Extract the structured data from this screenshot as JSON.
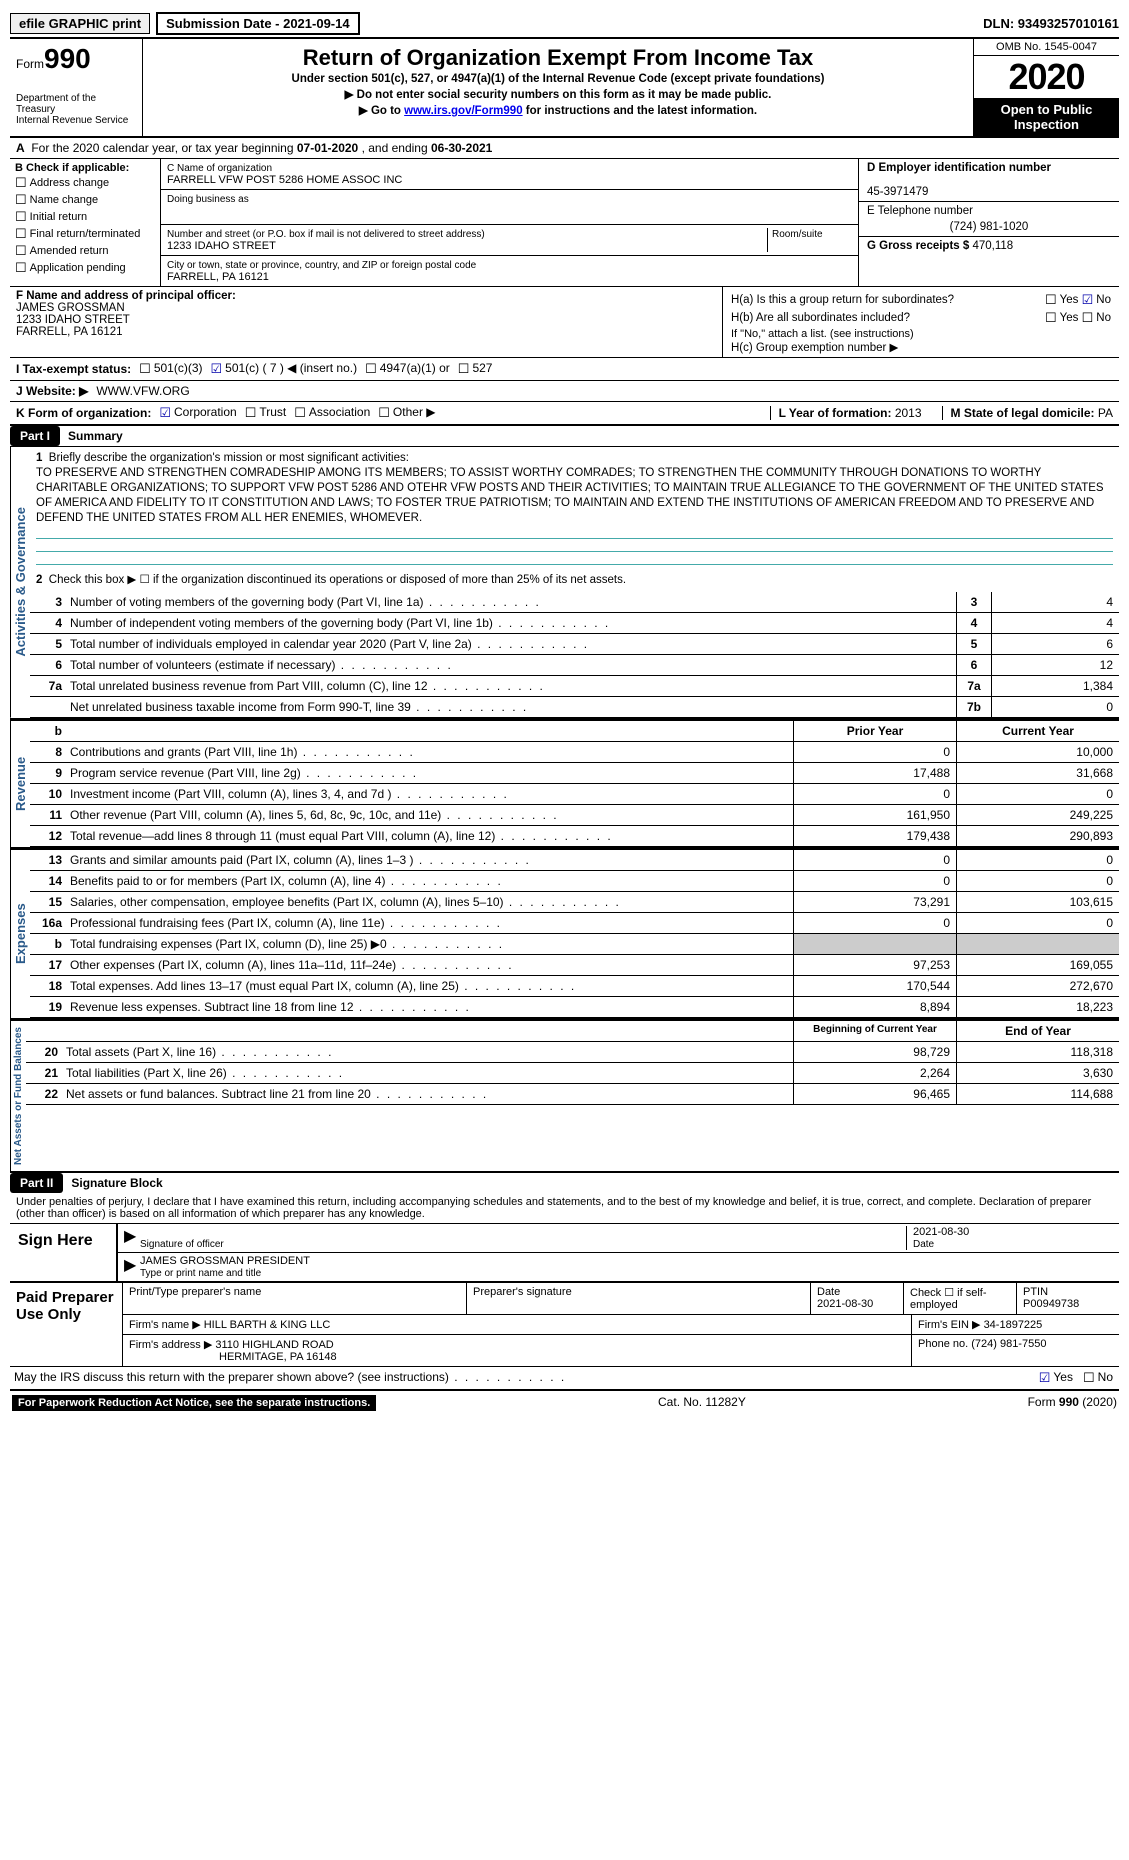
{
  "top": {
    "efile": "efile GRAPHIC print",
    "sub_label": "Submission Date - 2021-09-14",
    "dln": "DLN: 93493257010161"
  },
  "header": {
    "form_word": "Form",
    "form_num": "990",
    "dept": "Department of the Treasury\nInternal Revenue Service",
    "title": "Return of Organization Exempt From Income Tax",
    "sub1": "Under section 501(c), 527, or 4947(a)(1) of the Internal Revenue Code (except private foundations)",
    "sub2": "Do not enter social security numbers on this form as it may be made public.",
    "sub3_pre": "Go to ",
    "sub3_link": "www.irs.gov/Form990",
    "sub3_post": " for instructions and the latest information.",
    "omb": "OMB No. 1545-0047",
    "year": "2020",
    "open": "Open to Public Inspection"
  },
  "lineA": {
    "pre": "For the 2020 calendar year, or tax year beginning ",
    "begin": "07-01-2020",
    "mid": "  , and ending ",
    "end": "06-30-2021"
  },
  "colB": {
    "hdr": "B Check if applicable:",
    "items": [
      "Address change",
      "Name change",
      "Initial return",
      "Final return/terminated",
      "Amended return",
      "Application pending"
    ]
  },
  "colC": {
    "name_lbl": "C Name of organization",
    "name": "FARRELL VFW POST 5286 HOME ASSOC INC",
    "dba_lbl": "Doing business as",
    "addr_lbl": "Number and street (or P.O. box if mail is not delivered to street address)",
    "room_lbl": "Room/suite",
    "addr": "1233 IDAHO STREET",
    "city_lbl": "City or town, state or province, country, and ZIP or foreign postal code",
    "city": "FARRELL, PA  16121"
  },
  "colDE": {
    "d_lbl": "D Employer identification number",
    "d_val": "45-3971479",
    "e_lbl": "E Telephone number",
    "e_val": "(724) 981-1020",
    "g_lbl": "G Gross receipts $ ",
    "g_val": "470,118"
  },
  "rowF": {
    "lbl": "F Name and address of principal officer:",
    "name": "JAMES GROSSMAN",
    "addr1": "1233 IDAHO STREET",
    "addr2": "FARRELL, PA  16121"
  },
  "rowH": {
    "ha": "H(a)  Is this a group return for subordinates?",
    "hb": "H(b)  Are all subordinates included?",
    "hb_note": "If \"No,\" attach a list. (see instructions)",
    "hc": "H(c)  Group exemption number ▶",
    "yes": "Yes",
    "no": "No"
  },
  "rowI": {
    "lbl": "I    Tax-exempt status:",
    "o1": "501(c)(3)",
    "o2": "501(c) ( 7 ) ◀ (insert no.)",
    "o3": "4947(a)(1) or",
    "o4": "527"
  },
  "rowJ": {
    "lbl": "J   Website: ▶",
    "val": " WWW.VFW.ORG"
  },
  "rowK": {
    "lbl": "K Form of organization:",
    "opts": [
      "Corporation",
      "Trust",
      "Association",
      "Other ▶"
    ],
    "l_year_lbl": "L Year of formation: ",
    "l_year": "2013",
    "m_lbl": "M State of legal domicile: ",
    "m_val": "PA"
  },
  "part1": {
    "label": "Part I",
    "title": "Summary"
  },
  "summary": {
    "q1_lbl": "Briefly describe the organization's mission or most significant activities:",
    "q1_txt": "TO PRESERVE AND STRENGTHEN COMRADESHIP AMONG ITS MEMBERS; TO ASSIST WORTHY COMRADES; TO STRENGTHEN THE COMMUNITY THROUGH DONATIONS TO WORTHY CHARITABLE ORGANIZATIONS; TO SUPPORT VFW POST 5286 AND OTEHR VFW POSTS AND THEIR ACTIVITIES; TO MAINTAIN TRUE ALLEGIANCE TO THE GOVERNMENT OF THE UNITED STATES OF AMERICA AND FIDELITY TO IT CONSTITUTION AND LAWS; TO FOSTER TRUE PATRIOTISM; TO MAINTAIN AND EXTEND THE INSTITUTIONS OF AMERICAN FREEDOM AND TO PRESERVE AND DEFEND THE UNITED STATES FROM ALL HER ENEMIES, WHOMEVER.",
    "q2": "Check this box ▶ ☐  if the organization discontinued its operations or disposed of more than 25% of its net assets.",
    "rows": [
      {
        "n": "3",
        "t": "Number of voting members of the governing body (Part VI, line 1a)",
        "c": "3",
        "v": "4"
      },
      {
        "n": "4",
        "t": "Number of independent voting members of the governing body (Part VI, line 1b)",
        "c": "4",
        "v": "4"
      },
      {
        "n": "5",
        "t": "Total number of individuals employed in calendar year 2020 (Part V, line 2a)",
        "c": "5",
        "v": "6"
      },
      {
        "n": "6",
        "t": "Total number of volunteers (estimate if necessary)",
        "c": "6",
        "v": "12"
      },
      {
        "n": "7a",
        "t": "Total unrelated business revenue from Part VIII, column (C), line 12",
        "c": "7a",
        "v": "1,384"
      },
      {
        "n": "",
        "t": "Net unrelated business taxable income from Form 990-T, line 39",
        "c": "7b",
        "v": "0"
      }
    ]
  },
  "revenue": {
    "hdr_prior": "Prior Year",
    "hdr_curr": "Current Year",
    "rows": [
      {
        "n": "8",
        "t": "Contributions and grants (Part VIII, line 1h)",
        "p": "0",
        "c": "10,000"
      },
      {
        "n": "9",
        "t": "Program service revenue (Part VIII, line 2g)",
        "p": "17,488",
        "c": "31,668"
      },
      {
        "n": "10",
        "t": "Investment income (Part VIII, column (A), lines 3, 4, and 7d )",
        "p": "0",
        "c": "0"
      },
      {
        "n": "11",
        "t": "Other revenue (Part VIII, column (A), lines 5, 6d, 8c, 9c, 10c, and 11e)",
        "p": "161,950",
        "c": "249,225"
      },
      {
        "n": "12",
        "t": "Total revenue—add lines 8 through 11 (must equal Part VIII, column (A), line 12)",
        "p": "179,438",
        "c": "290,893"
      }
    ]
  },
  "expenses": {
    "rows": [
      {
        "n": "13",
        "t": "Grants and similar amounts paid (Part IX, column (A), lines 1–3 )",
        "p": "0",
        "c": "0"
      },
      {
        "n": "14",
        "t": "Benefits paid to or for members (Part IX, column (A), line 4)",
        "p": "0",
        "c": "0"
      },
      {
        "n": "15",
        "t": "Salaries, other compensation, employee benefits (Part IX, column (A), lines 5–10)",
        "p": "73,291",
        "c": "103,615"
      },
      {
        "n": "16a",
        "t": "Professional fundraising fees (Part IX, column (A), line 11e)",
        "p": "0",
        "c": "0"
      },
      {
        "n": "b",
        "t": "Total fundraising expenses (Part IX, column (D), line 25) ▶0",
        "p": "",
        "c": "",
        "shade": true
      },
      {
        "n": "17",
        "t": "Other expenses (Part IX, column (A), lines 11a–11d, 11f–24e)",
        "p": "97,253",
        "c": "169,055"
      },
      {
        "n": "18",
        "t": "Total expenses. Add lines 13–17 (must equal Part IX, column (A), line 25)",
        "p": "170,544",
        "c": "272,670"
      },
      {
        "n": "19",
        "t": "Revenue less expenses. Subtract line 18 from line 12",
        "p": "8,894",
        "c": "18,223"
      }
    ]
  },
  "netassets": {
    "hdr_begin": "Beginning of Current Year",
    "hdr_end": "End of Year",
    "rows": [
      {
        "n": "20",
        "t": "Total assets (Part X, line 16)",
        "p": "98,729",
        "c": "118,318"
      },
      {
        "n": "21",
        "t": "Total liabilities (Part X, line 26)",
        "p": "2,264",
        "c": "3,630"
      },
      {
        "n": "22",
        "t": "Net assets or fund balances. Subtract line 21 from line 20",
        "p": "96,465",
        "c": "114,688"
      }
    ]
  },
  "part2": {
    "label": "Part II",
    "title": "Signature Block"
  },
  "sig": {
    "intro": "Under penalties of perjury, I declare that I have examined this return, including accompanying schedules and statements, and to the best of my knowledge and belief, it is true, correct, and complete. Declaration of preparer (other than officer) is based on all information of which preparer has any knowledge.",
    "sign_here": "Sign Here",
    "sig_lbl": "Signature of officer",
    "date": "2021-08-30",
    "date_lbl": "Date",
    "name": "JAMES GROSSMAN  PRESIDENT",
    "name_lbl": "Type or print name and title"
  },
  "prep": {
    "title": "Paid Preparer Use Only",
    "h_name": "Print/Type preparer's name",
    "h_sig": "Preparer's signature",
    "h_date": "Date",
    "date": "2021-08-30",
    "h_chk": "Check ☐ if self-employed",
    "h_ptin": "PTIN",
    "ptin": "P00949738",
    "firm_lbl": "Firm's name    ▶ ",
    "firm": "HILL BARTH & KING LLC",
    "ein_lbl": "Firm's EIN ▶ ",
    "ein": "34-1897225",
    "addr_lbl": "Firm's address ▶ ",
    "addr": "3110 HIGHLAND ROAD",
    "addr2": "HERMITAGE, PA  16148",
    "phone_lbl": "Phone no. ",
    "phone": "(724) 981-7550"
  },
  "footer": {
    "discuss": "May the IRS discuss this return with the preparer shown above? (see instructions)",
    "yes": "Yes",
    "no": "No",
    "paperwork": "For Paperwork Reduction Act Notice, see the separate instructions.",
    "cat": "Cat. No. 11282Y",
    "formref": "Form 990 (2020)"
  },
  "vert": {
    "activities": "Activities & Governance",
    "revenue": "Revenue",
    "expenses": "Expenses",
    "net": "Net Assets or Fund Balances"
  }
}
